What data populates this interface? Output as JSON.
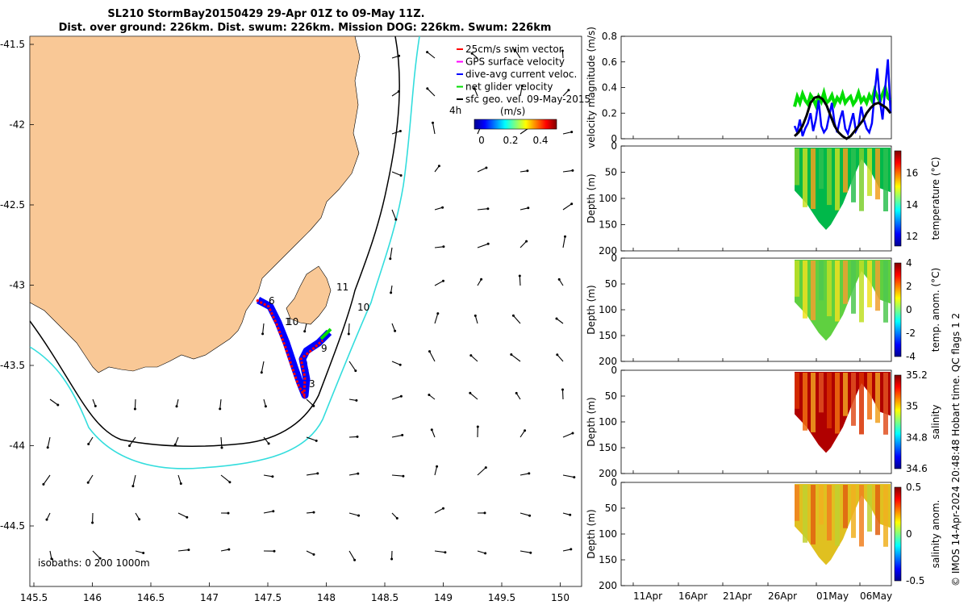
{
  "title_line1": "SL210 StormBay20150429 29-Apr 01Z to 09-May 11Z.",
  "title_line2": "Dist. over ground: 226km. Dist. swum: 226km. Mission DOG: 226km. Swum: 226km",
  "credit": "© IMOS 14-Apr-2024 20:48:48 Hobart time. QC flags 1  2",
  "legend": {
    "items": [
      {
        "label": "25cm/s swim vector",
        "color": "#ff0000"
      },
      {
        "label": "GPS surface velocity",
        "color": "#ff00ff"
      },
      {
        "label": "dive-avg current veloc.",
        "color": "#0000ff"
      },
      {
        "label": "net glider velocity",
        "color": "#00dd00"
      },
      {
        "label": "sfc geo. vel. 09-May-2015",
        "color": "#000000"
      }
    ],
    "time_label": "4h",
    "colorbar_title": "(m/s)",
    "colorbar_ticks": [
      "0",
      "0.2",
      "0.4"
    ]
  },
  "map": {
    "x_ticks": [
      "145.5",
      "146",
      "146.5",
      "147",
      "147.5",
      "148",
      "148.5",
      "149",
      "149.5",
      "150"
    ],
    "y_ticks": [
      "-41.5",
      "-42",
      "-42.5",
      "-43",
      "-43.5",
      "-44",
      "-44.5"
    ],
    "isobaths_label": "isobaths: 0   200  1000m",
    "annotations": [
      "6",
      "1",
      "10",
      "11",
      "10",
      "9",
      "3"
    ],
    "land_color": "#f9c896",
    "isobath_200_color": "#000000",
    "isobath_1000_color": "#33dddd"
  },
  "chart_data": [
    {
      "type": "line",
      "title": "",
      "ylabel": "velocity magnitude (m/s)",
      "ylim": [
        0,
        0.8
      ],
      "y_ticks": [
        "0.8",
        "0.6",
        "0.4",
        "0.2",
        "0"
      ],
      "series": [
        {
          "name": "net glider velocity",
          "color": "#00dd00",
          "values": [
            0.25,
            0.33,
            0.28,
            0.35,
            0.3,
            0.27,
            0.34,
            0.31,
            0.26,
            0.33,
            0.29,
            0.36,
            0.28,
            0.3,
            0.34,
            0.27,
            0.32,
            0.29,
            0.35,
            0.28,
            0.31,
            0.33,
            0.27,
            0.3,
            0.36,
            0.29,
            0.32,
            0.28,
            0.34,
            0.3,
            0.38,
            0.33,
            0.29,
            0.35,
            0.4,
            0.32,
            0.3
          ]
        },
        {
          "name": "dive-avg current veloc.",
          "color": "#0000ff",
          "values": [
            0.1,
            0.05,
            0.15,
            0.02,
            0.08,
            0.12,
            0.2,
            0.06,
            0.15,
            0.3,
            0.1,
            0.05,
            0.08,
            0.18,
            0.28,
            0.12,
            0.05,
            0.15,
            0.22,
            0.08,
            0.04,
            0.12,
            0.2,
            0.06,
            0.1,
            0.25,
            0.15,
            0.08,
            0.05,
            0.12,
            0.35,
            0.55,
            0.3,
            0.15,
            0.4,
            0.62,
            0.2
          ]
        },
        {
          "name": "sfc geo. vel.",
          "color": "#000000",
          "values": [
            0.02,
            0.05,
            0.1,
            0.18,
            0.28,
            0.32,
            0.33,
            0.31,
            0.26,
            0.18,
            0.1,
            0.05,
            0.02,
            0.0,
            0.02,
            0.06,
            0.1,
            0.14,
            0.2,
            0.24,
            0.27,
            0.28,
            0.26,
            0.24,
            0.2
          ]
        }
      ]
    },
    {
      "type": "heatmap",
      "ylabel": "Depth (m)",
      "y_ticks": [
        "0",
        "50",
        "100",
        "150",
        "200"
      ],
      "ylim": [
        0,
        200
      ],
      "colorbar_label": "temperature (°C)",
      "colorbar_ticks": [
        "16",
        "14",
        "12"
      ]
    },
    {
      "type": "heatmap",
      "ylabel": "Depth (m)",
      "y_ticks": [
        "0",
        "50",
        "100",
        "150",
        "200"
      ],
      "ylim": [
        0,
        200
      ],
      "colorbar_label": "temp. anom. (°C)",
      "colorbar_ticks": [
        "4",
        "2",
        "0",
        "-2",
        "-4"
      ]
    },
    {
      "type": "heatmap",
      "ylabel": "Depth (m)",
      "y_ticks": [
        "0",
        "50",
        "100",
        "150",
        "200"
      ],
      "ylim": [
        0,
        200
      ],
      "colorbar_label": "salinity",
      "colorbar_ticks": [
        "35.2",
        "35",
        "34.8",
        "34.6"
      ]
    },
    {
      "type": "heatmap",
      "ylabel": "Depth (m)",
      "y_ticks": [
        "0",
        "50",
        "100",
        "150",
        "200"
      ],
      "ylim": [
        0,
        200
      ],
      "colorbar_label": "salinity anom.",
      "colorbar_ticks": [
        "0.5",
        "0",
        "-0.5"
      ],
      "x_ticks": [
        "11Apr",
        "16Apr",
        "21Apr",
        "26Apr",
        "01May",
        "06May"
      ]
    }
  ]
}
